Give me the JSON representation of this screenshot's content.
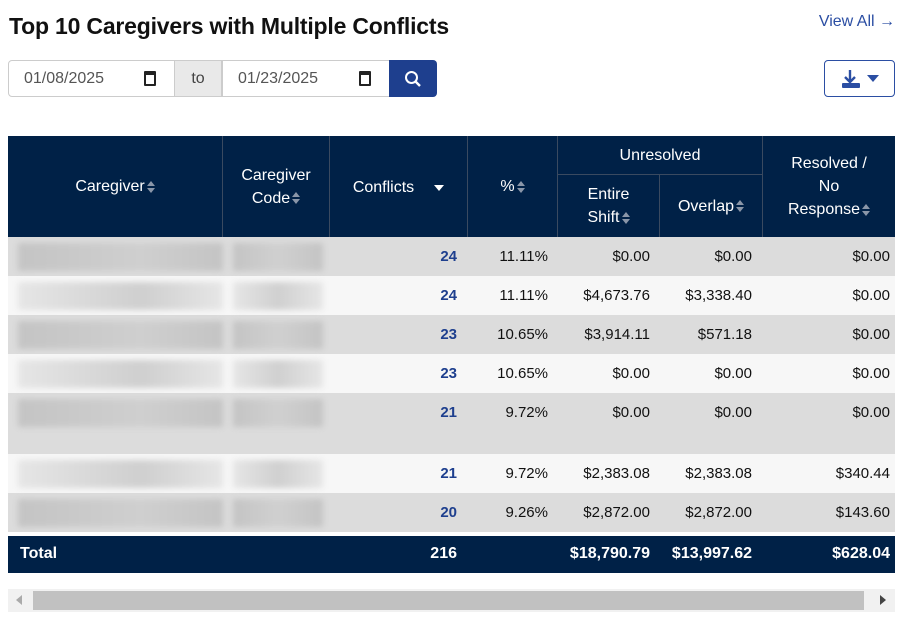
{
  "title": "Top 10 Caregivers with Multiple Conflicts",
  "view_all": "View All →",
  "filters": {
    "from": "01/08/2025",
    "to_label": "to",
    "to": "01/23/2025"
  },
  "icons": {
    "calendar": "calendar-icon",
    "search": "search-icon",
    "download": "download-icon",
    "dropdown": "caret-down-icon"
  },
  "colors": {
    "header": "#002147",
    "accent": "#1e3f8e",
    "link": "#2b4ea3"
  },
  "table": {
    "headers": {
      "caregiver": "Caregiver",
      "code": "Caregiver Code",
      "conflicts": "Conflicts",
      "pct": "%",
      "unresolved": "Unresolved",
      "entire_shift": "Entire Shift",
      "overlap": "Overlap",
      "resolved": "Resolved / No Response"
    },
    "rows": [
      {
        "conflicts": "24",
        "pct": "11.11%",
        "entire": "$0.00",
        "overlap": "$0.00",
        "resolved": "$0.00"
      },
      {
        "conflicts": "24",
        "pct": "11.11%",
        "entire": "$4,673.76",
        "overlap": "$3,338.40",
        "resolved": "$0.00"
      },
      {
        "conflicts": "23",
        "pct": "10.65%",
        "entire": "$3,914.11",
        "overlap": "$571.18",
        "resolved": "$0.00"
      },
      {
        "conflicts": "23",
        "pct": "10.65%",
        "entire": "$0.00",
        "overlap": "$0.00",
        "resolved": "$0.00"
      },
      {
        "conflicts": "21",
        "pct": "9.72%",
        "entire": "$0.00",
        "overlap": "$0.00",
        "resolved": "$0.00"
      },
      {
        "conflicts": "21",
        "pct": "9.72%",
        "entire": "$2,383.08",
        "overlap": "$2,383.08",
        "resolved": "$340.44"
      },
      {
        "conflicts": "20",
        "pct": "9.26%",
        "entire": "$2,872.00",
        "overlap": "$2,872.00",
        "resolved": "$143.60"
      }
    ],
    "total": {
      "label": "Total",
      "conflicts": "216",
      "entire": "$18,790.79",
      "overlap": "$13,997.62",
      "resolved": "$628.04"
    }
  }
}
